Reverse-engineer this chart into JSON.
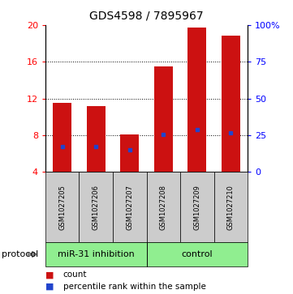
{
  "title": "GDS4598 / 7895967",
  "samples": [
    "GSM1027205",
    "GSM1027206",
    "GSM1027207",
    "GSM1027208",
    "GSM1027209",
    "GSM1027210"
  ],
  "bar_tops": [
    11.5,
    11.2,
    8.1,
    15.5,
    19.7,
    18.8
  ],
  "bar_bottom": 4.0,
  "percentile_values": [
    6.8,
    6.75,
    6.4,
    8.05,
    8.65,
    8.3
  ],
  "ylim_left": [
    4,
    20
  ],
  "ylim_right": [
    0,
    100
  ],
  "yticks_left": [
    4,
    8,
    12,
    16,
    20
  ],
  "yticks_right": [
    0,
    25,
    50,
    75,
    100
  ],
  "ytick_labels_right": [
    "0",
    "25",
    "50",
    "75",
    "100%"
  ],
  "bar_color": "#cc1111",
  "percentile_color": "#2244cc",
  "bar_width": 0.55,
  "group_bg": "#90ee90",
  "sample_bg": "#cccccc",
  "legend_count_color": "#cc1111",
  "legend_pct_color": "#2244cc",
  "protocol_label": "protocol",
  "group_labels": [
    {
      "label": "miR-31 inhibition",
      "span": [
        0,
        2
      ]
    },
    {
      "label": "control",
      "span": [
        3,
        5
      ]
    }
  ],
  "hgrid_at": [
    8,
    12,
    16
  ],
  "title_fontsize": 10,
  "tick_fontsize": 8,
  "sample_fontsize": 6,
  "group_fontsize": 8,
  "legend_fontsize": 7.5
}
